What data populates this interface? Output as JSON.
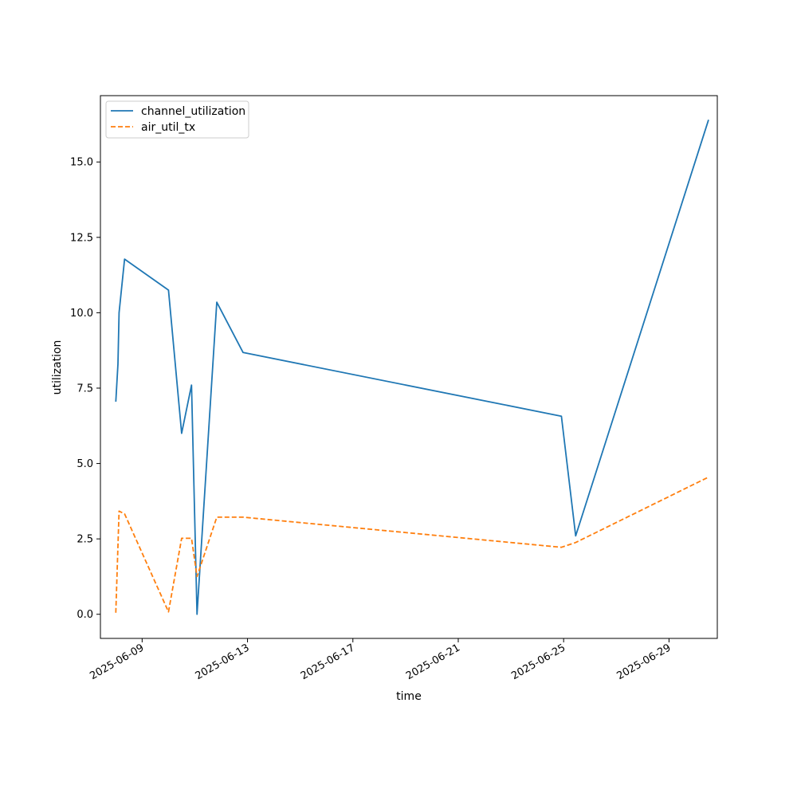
{
  "chart_data": {
    "type": "line",
    "xlabel": "time",
    "ylabel": "utilization",
    "x_axis_kind": "date",
    "xlim": [
      "2025-06-07T10:00",
      "2025-06-30T20:00"
    ],
    "ylim": [
      -0.8,
      17.2
    ],
    "x_ticks": [
      "2025-06-09",
      "2025-06-13",
      "2025-06-17",
      "2025-06-21",
      "2025-06-25",
      "2025-06-29"
    ],
    "y_ticks": [
      "0.0",
      "2.5",
      "5.0",
      "7.5",
      "10.0",
      "12.5",
      "15.0"
    ],
    "grid": false,
    "legend_position": "upper-left",
    "series": [
      {
        "name": "channel_utilization",
        "color": "#1f77b4",
        "style": "solid",
        "points": [
          [
            "2025-06-08T00:00",
            7.05
          ],
          [
            "2025-06-08T02:00",
            8.3
          ],
          [
            "2025-06-08T03:00",
            10.0
          ],
          [
            "2025-06-08T08:00",
            11.78
          ],
          [
            "2025-06-10T00:00",
            10.75
          ],
          [
            "2025-06-10T12:00",
            6.0
          ],
          [
            "2025-06-10T21:00",
            7.6
          ],
          [
            "2025-06-11T02:00",
            0.0
          ],
          [
            "2025-06-11T20:00",
            10.35
          ],
          [
            "2025-06-12T20:00",
            8.68
          ],
          [
            "2025-06-24T22:00",
            6.57
          ],
          [
            "2025-06-25T11:00",
            2.6
          ],
          [
            "2025-06-30T12:00",
            16.4
          ]
        ]
      },
      {
        "name": "air_util_tx",
        "color": "#ff7f0e",
        "style": "dashed",
        "points": [
          [
            "2025-06-08T00:00",
            0.05
          ],
          [
            "2025-06-08T03:00",
            3.42
          ],
          [
            "2025-06-08T08:00",
            3.33
          ],
          [
            "2025-06-10T00:00",
            0.08
          ],
          [
            "2025-06-10T12:00",
            2.52
          ],
          [
            "2025-06-10T21:00",
            2.52
          ],
          [
            "2025-06-11T02:00",
            1.25
          ],
          [
            "2025-06-11T20:00",
            3.22
          ],
          [
            "2025-06-12T20:00",
            3.22
          ],
          [
            "2025-06-24T22:00",
            2.22
          ],
          [
            "2025-06-25T11:00",
            2.38
          ],
          [
            "2025-06-30T12:00",
            4.55
          ]
        ]
      }
    ]
  }
}
